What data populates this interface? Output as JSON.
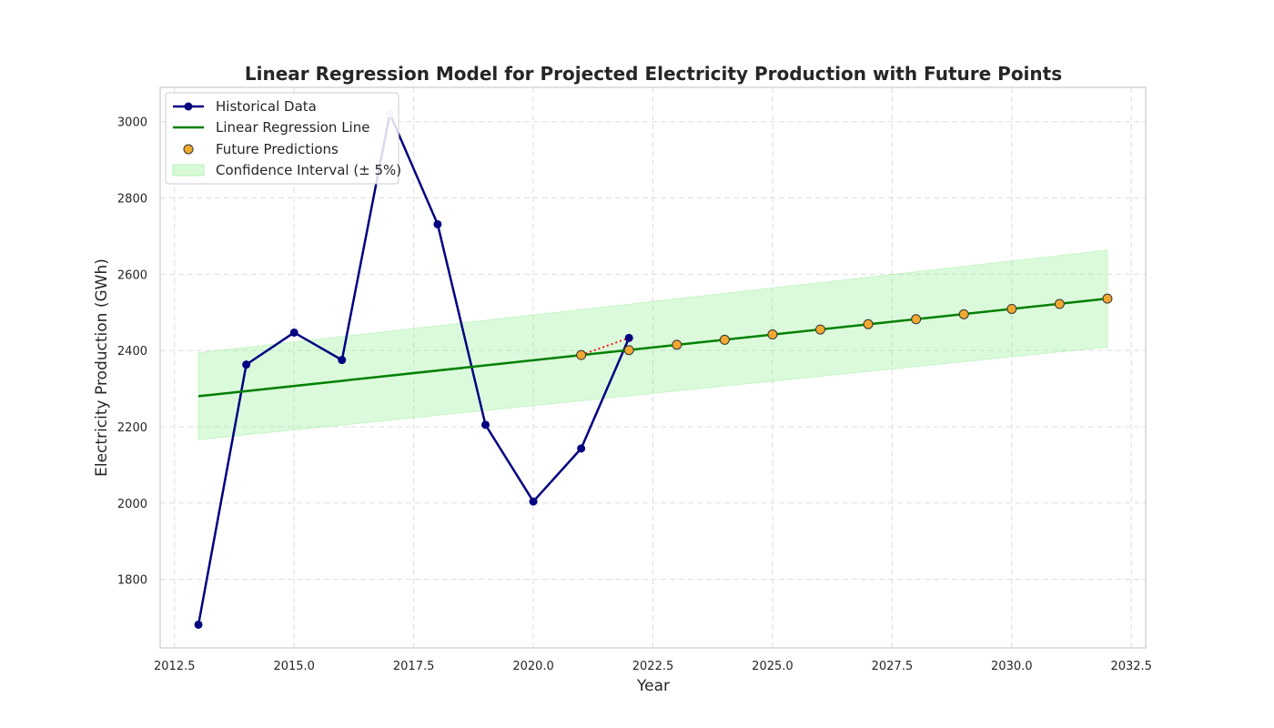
{
  "chart_data": {
    "type": "line",
    "title": "Linear Regression Model for Projected Electricity Production with Future Points",
    "xlabel": "Year",
    "ylabel": "Electricity Production (GWh)",
    "xlim": [
      2012.2,
      2032.8
    ],
    "ylim": [
      1620,
      3090
    ],
    "xticks": [
      2012.5,
      2015.0,
      2017.5,
      2020.0,
      2022.5,
      2025.0,
      2027.5,
      2030.0,
      2032.5
    ],
    "xtick_labels": [
      "2012.5",
      "2015.0",
      "2017.5",
      "2020.0",
      "2022.5",
      "2025.0",
      "2027.5",
      "2030.0",
      "2032.5"
    ],
    "yticks": [
      1800,
      2000,
      2200,
      2400,
      2600,
      2800,
      3000
    ],
    "ytick_labels": [
      "1800",
      "2000",
      "2200",
      "2400",
      "2600",
      "2800",
      "3000"
    ],
    "grid": true,
    "legend_position": "top-left",
    "series": [
      {
        "name": "Historical Data",
        "kind": "line-marker",
        "color": "#000080",
        "x": [
          2013,
          2014,
          2015,
          2016,
          2017,
          2018,
          2019,
          2020,
          2021,
          2022
        ],
        "y": [
          1681,
          2363,
          2447,
          2375,
          3021,
          2731,
          2205,
          2004,
          2143,
          2433
        ]
      },
      {
        "name": "Linear Regression Line",
        "kind": "line",
        "color": "#008000",
        "x": [
          2013,
          2032
        ],
        "y": [
          2280,
          2536
        ]
      },
      {
        "name": "Future Predictions",
        "kind": "scatter",
        "color": "#f0a830",
        "edge_color": "#333333",
        "x": [
          2021,
          2022,
          2023,
          2024,
          2025,
          2026,
          2027,
          2028,
          2029,
          2030,
          2031,
          2032
        ],
        "y": [
          2388,
          2401,
          2415,
          2428,
          2442,
          2455,
          2469,
          2482,
          2495,
          2509,
          2522,
          2536
        ]
      },
      {
        "name": "Confidence Interval (± 5%)",
        "kind": "band",
        "color": "#90ee90",
        "x": [
          2013,
          2032
        ],
        "lower": [
          2166,
          2409
        ],
        "upper": [
          2394,
          2663
        ]
      }
    ],
    "connector": {
      "color": "#ff0000",
      "style": "dotted",
      "x": [
        2021,
        2022
      ],
      "y": [
        2388,
        2433
      ]
    }
  }
}
